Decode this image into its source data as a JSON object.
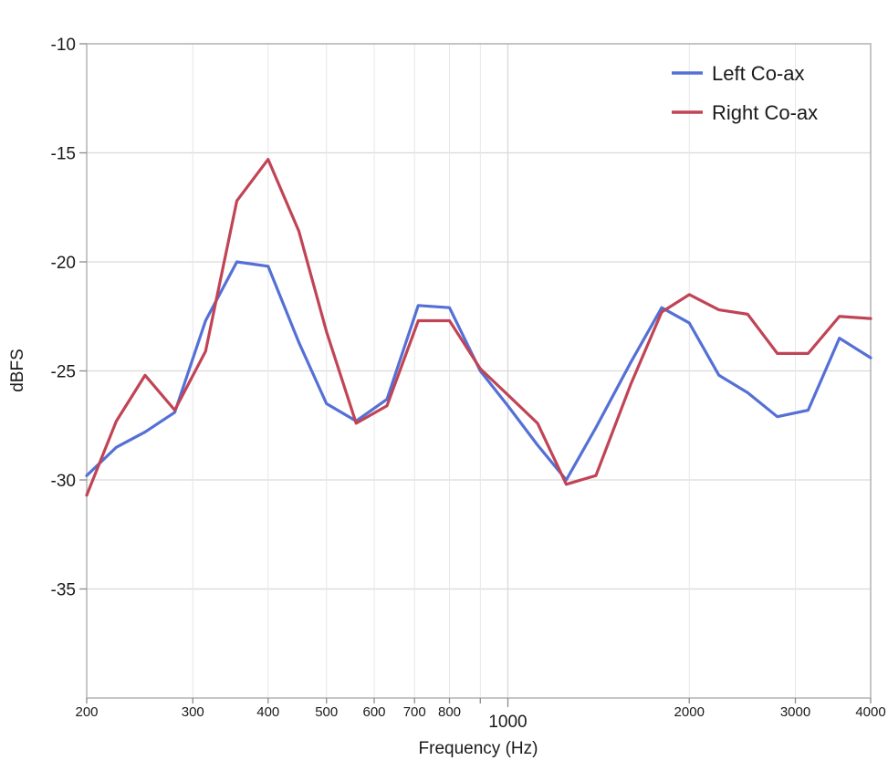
{
  "chart_data": {
    "type": "line",
    "title": "",
    "xlabel": "Frequency (Hz)",
    "ylabel": "dBFS",
    "x_scale": "log",
    "xlim": [
      200,
      4000
    ],
    "ylim": [
      -40,
      -10
    ],
    "grid": true,
    "legend_position": "top-right",
    "x_ticks": [
      {
        "value": 200,
        "label": "200",
        "major": false
      },
      {
        "value": 300,
        "label": "300",
        "major": false
      },
      {
        "value": 400,
        "label": "400",
        "major": false
      },
      {
        "value": 500,
        "label": "500",
        "major": false
      },
      {
        "value": 600,
        "label": "600",
        "major": false
      },
      {
        "value": 700,
        "label": "700",
        "major": false
      },
      {
        "value": 800,
        "label": "800",
        "major": false
      },
      {
        "value": 900,
        "label": "",
        "major": false
      },
      {
        "value": 1000,
        "label": "1000",
        "major": true
      },
      {
        "value": 2000,
        "label": "2000",
        "major": false
      },
      {
        "value": 3000,
        "label": "3000",
        "major": false
      },
      {
        "value": 4000,
        "label": "4000",
        "major": false
      }
    ],
    "y_ticks": [
      -10,
      -15,
      -20,
      -25,
      -30,
      -35
    ],
    "x": [
      200,
      224,
      250,
      280,
      315,
      355,
      400,
      450,
      500,
      560,
      630,
      710,
      800,
      900,
      1000,
      1120,
      1250,
      1400,
      1600,
      1800,
      2000,
      2240,
      2500,
      2800,
      3150,
      3550,
      4000
    ],
    "series": [
      {
        "name": "Left Co-ax",
        "color": "#5470d6",
        "values": [
          -29.8,
          -28.5,
          -27.8,
          -26.9,
          -22.7,
          -20.0,
          -20.2,
          -23.7,
          -26.5,
          -27.3,
          -26.3,
          -22.0,
          -22.1,
          -25.0,
          -26.6,
          -28.4,
          -30.0,
          -27.6,
          -24.6,
          -22.1,
          -22.8,
          -25.2,
          -26.0,
          -27.1,
          -26.8,
          -23.5,
          -24.4
        ]
      },
      {
        "name": "Right Co-ax",
        "color": "#c04455",
        "values": [
          -30.7,
          -27.3,
          -25.2,
          -26.8,
          -24.1,
          -17.2,
          -15.3,
          -18.6,
          -23.2,
          -27.4,
          -26.6,
          -22.7,
          -22.7,
          -24.9,
          -26.1,
          -27.4,
          -30.2,
          -29.8,
          -25.6,
          -22.3,
          -21.5,
          -22.2,
          -22.4,
          -24.2,
          -24.2,
          -22.5,
          -22.6
        ]
      }
    ]
  }
}
